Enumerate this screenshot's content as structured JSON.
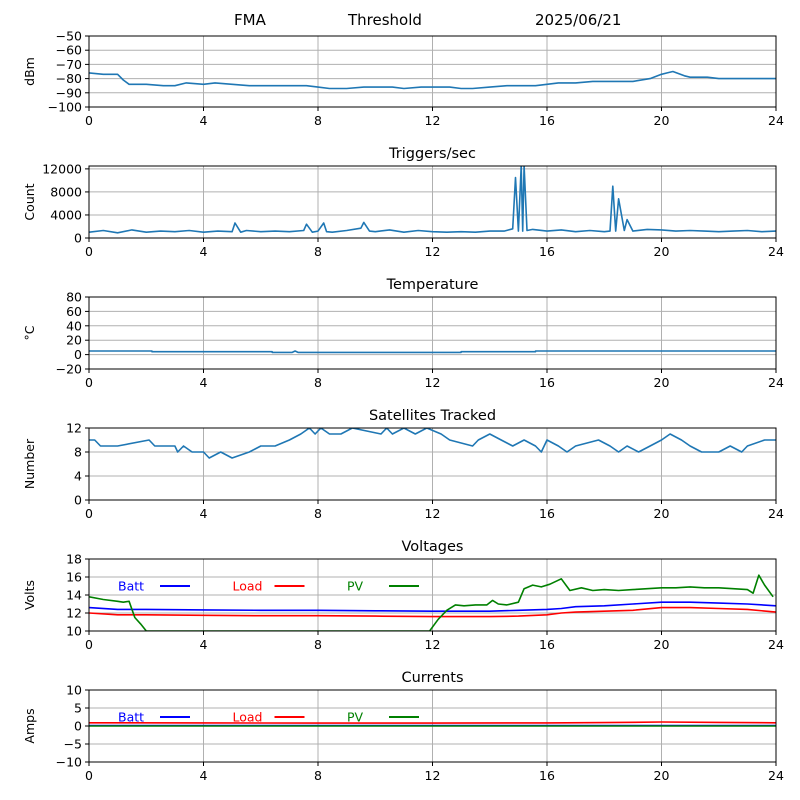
{
  "header": {
    "station": "FMA",
    "mode": "Threshold",
    "date": "2025/06/21"
  },
  "colors": {
    "series_default": "#1f77b4",
    "batt": "#0000ff",
    "load": "#ff0000",
    "pv": "#008000",
    "grid": "#b0b0b0"
  },
  "chart_data": [
    {
      "id": "signal",
      "type": "line",
      "title": "",
      "xlabel": "",
      "ylabel": "dBm",
      "xlim": [
        0,
        24
      ],
      "ylim": [
        -100,
        -50
      ],
      "xticks": [
        0,
        4,
        8,
        12,
        16,
        20,
        24
      ],
      "yticks": [
        -100,
        -90,
        -80,
        -70,
        -60,
        -50
      ],
      "grid": true,
      "series": [
        {
          "color": "#1f77b4",
          "x": [
            0,
            0.5,
            1,
            1.2,
            1.4,
            2,
            2.6,
            3,
            3.4,
            4,
            4.4,
            5,
            5.6,
            6,
            6.4,
            7,
            7.6,
            8,
            8.4,
            9,
            9.6,
            10,
            10.6,
            11,
            11.6,
            12,
            12.6,
            13,
            13.4,
            14,
            14.6,
            15,
            15.6,
            16,
            16.4,
            17,
            17.6,
            18,
            18.4,
            19,
            19.6,
            20,
            20.2,
            20.4,
            20.8,
            21,
            21.6,
            22,
            22.6,
            23,
            23.6,
            24
          ],
          "y": [
            -76,
            -77,
            -77,
            -81,
            -84,
            -84,
            -85,
            -85,
            -83,
            -84,
            -83,
            -84,
            -85,
            -85,
            -85,
            -85,
            -85,
            -86,
            -87,
            -87,
            -86,
            -86,
            -86,
            -87,
            -86,
            -86,
            -86,
            -87,
            -87,
            -86,
            -85,
            -85,
            -85,
            -84,
            -83,
            -83,
            -82,
            -82,
            -82,
            -82,
            -80,
            -77,
            -76,
            -75,
            -78,
            -79,
            -79,
            -80,
            -80,
            -80,
            -80,
            -80
          ]
        }
      ]
    },
    {
      "id": "triggers",
      "type": "line",
      "title": "Triggers/sec",
      "xlabel": "",
      "ylabel": "Count",
      "xlim": [
        0,
        24
      ],
      "ylim": [
        0,
        12500
      ],
      "xticks": [
        0,
        4,
        8,
        12,
        16,
        20,
        24
      ],
      "yticks": [
        0,
        4000,
        8000,
        12000
      ],
      "grid": true,
      "series": [
        {
          "color": "#1f77b4",
          "x": [
            0,
            0.5,
            1,
            1.5,
            2,
            2.5,
            3,
            3.5,
            4,
            4.5,
            5,
            5.1,
            5.3,
            5.5,
            6,
            6.5,
            7,
            7.5,
            7.6,
            7.8,
            8,
            8.2,
            8.3,
            8.5,
            9,
            9.5,
            9.6,
            9.8,
            10,
            10.5,
            11,
            11.5,
            12,
            12.5,
            13,
            13.5,
            14,
            14.5,
            14.8,
            14.9,
            15.0,
            15.1,
            15.15,
            15.2,
            15.3,
            15.5,
            16,
            16.5,
            17,
            17.5,
            18,
            18.2,
            18.3,
            18.4,
            18.5,
            18.7,
            18.8,
            19,
            19.5,
            20,
            20.5,
            21,
            21.5,
            22,
            22.5,
            23,
            23.5,
            24
          ],
          "y": [
            1000,
            1300,
            900,
            1400,
            1000,
            1200,
            1100,
            1300,
            1000,
            1200,
            1100,
            2600,
            1000,
            1300,
            1100,
            1200,
            1100,
            1300,
            2400,
            1000,
            1200,
            2600,
            1100,
            1000,
            1300,
            1700,
            2700,
            1200,
            1100,
            1400,
            1000,
            1300,
            1100,
            1000,
            1100,
            1000,
            1200,
            1200,
            1600,
            10500,
            1200,
            12500,
            1200,
            12500,
            1300,
            1500,
            1200,
            1400,
            1100,
            1300,
            1100,
            1200,
            9000,
            1200,
            6800,
            1300,
            3200,
            1200,
            1500,
            1400,
            1200,
            1300,
            1200,
            1100,
            1200,
            1300,
            1100,
            1200
          ]
        }
      ]
    },
    {
      "id": "temperature",
      "type": "line",
      "title": "Temperature",
      "xlabel": "",
      "ylabel": "°C",
      "xlim": [
        0,
        24
      ],
      "ylim": [
        -20,
        80
      ],
      "xticks": [
        0,
        4,
        8,
        12,
        16,
        20,
        24
      ],
      "yticks": [
        -20,
        0,
        20,
        40,
        60,
        80
      ],
      "grid": true,
      "series": [
        {
          "color": "#1f77b4",
          "x": [
            0,
            2.2,
            2.2,
            6.4,
            6.4,
            7.1,
            7.2,
            7.3,
            13,
            13,
            15.6,
            15.6,
            24
          ],
          "y": [
            5,
            5,
            4,
            4,
            3,
            3,
            5,
            3,
            3,
            4,
            4,
            5,
            5
          ]
        }
      ]
    },
    {
      "id": "satellites",
      "type": "line",
      "title": "Satellites Tracked",
      "xlabel": "",
      "ylabel": "Number",
      "xlim": [
        0,
        24
      ],
      "ylim": [
        0,
        12
      ],
      "xticks": [
        0,
        4,
        8,
        12,
        16,
        20,
        24
      ],
      "yticks": [
        0,
        4,
        8,
        12
      ],
      "grid": true,
      "series": [
        {
          "color": "#1f77b4",
          "x": [
            0,
            0.2,
            0.4,
            1,
            2.1,
            2.3,
            3,
            3.1,
            3.3,
            3.6,
            4,
            4.2,
            4.6,
            5,
            5.6,
            6,
            6.5,
            7,
            7.4,
            7.7,
            7.9,
            8.1,
            8.4,
            8.8,
            9.2,
            10.2,
            10.4,
            10.6,
            11,
            11.4,
            11.8,
            12.3,
            12.6,
            13.4,
            13.6,
            14,
            14.4,
            14.8,
            15.2,
            15.6,
            15.8,
            16,
            16.4,
            16.7,
            17,
            17.8,
            18.2,
            18.5,
            18.8,
            19.2,
            19.6,
            20,
            20.3,
            20.7,
            21,
            21.4,
            22,
            22.4,
            22.8,
            23,
            23.6,
            24
          ],
          "y": [
            10,
            10,
            9,
            9,
            10,
            9,
            9,
            8,
            9,
            8,
            8,
            7,
            8,
            7,
            8,
            9,
            9,
            10,
            11,
            12,
            11,
            12,
            11,
            11,
            12,
            11,
            12,
            11,
            12,
            11,
            12,
            11,
            10,
            9,
            10,
            11,
            10,
            9,
            10,
            9,
            8,
            10,
            9,
            8,
            9,
            10,
            9,
            8,
            9,
            8,
            9,
            10,
            11,
            10,
            9,
            8,
            8,
            9,
            8,
            9,
            10,
            10
          ]
        }
      ]
    },
    {
      "id": "voltages",
      "type": "line",
      "title": "Voltages",
      "xlabel": "",
      "ylabel": "Volts",
      "xlim": [
        0,
        24
      ],
      "ylim": [
        10,
        18
      ],
      "xticks": [
        0,
        4,
        8,
        12,
        16,
        20,
        24
      ],
      "yticks": [
        10,
        12,
        14,
        16,
        18
      ],
      "grid": true,
      "legend_position": "top-left",
      "series": [
        {
          "name": "Batt",
          "color": "#0000ff",
          "x": [
            0,
            1,
            2,
            4,
            6,
            8,
            10,
            12,
            14,
            15,
            16,
            16.5,
            17,
            18,
            19,
            20,
            21,
            22,
            23,
            24
          ],
          "y": [
            12.6,
            12.4,
            12.4,
            12.35,
            12.3,
            12.3,
            12.25,
            12.2,
            12.2,
            12.3,
            12.4,
            12.5,
            12.7,
            12.8,
            13.0,
            13.2,
            13.2,
            13.1,
            13.0,
            12.8
          ]
        },
        {
          "name": "Load",
          "color": "#ff0000",
          "x": [
            0,
            1,
            2,
            4,
            6,
            8,
            10,
            12,
            14,
            15,
            16,
            16.5,
            17,
            18,
            19,
            20,
            21,
            22,
            23,
            24
          ],
          "y": [
            12.0,
            11.8,
            11.8,
            11.75,
            11.7,
            11.7,
            11.65,
            11.6,
            11.6,
            11.65,
            11.8,
            12.0,
            12.1,
            12.2,
            12.3,
            12.6,
            12.6,
            12.5,
            12.4,
            12.1
          ]
        },
        {
          "name": "PV",
          "color": "#008000",
          "x": [
            0,
            0.5,
            1,
            1.2,
            1.4,
            1.6,
            1.8,
            2.0,
            11.9,
            12.2,
            12.5,
            12.8,
            13.1,
            13.5,
            13.9,
            14.1,
            14.3,
            14.6,
            15.0,
            15.2,
            15.5,
            15.8,
            16.1,
            16.5,
            16.8,
            17.2,
            17.6,
            18,
            18.5,
            19,
            19.5,
            20,
            20.5,
            21,
            21.5,
            22,
            22.5,
            23,
            23.2,
            23.4,
            23.6,
            23.9
          ],
          "y": [
            13.8,
            13.5,
            13.3,
            13.2,
            13.3,
            11.5,
            10.8,
            10.0,
            10.0,
            11.3,
            12.3,
            12.9,
            12.8,
            12.9,
            12.9,
            13.4,
            13.0,
            12.9,
            13.2,
            14.7,
            15.1,
            14.9,
            15.2,
            15.8,
            14.5,
            14.8,
            14.5,
            14.6,
            14.5,
            14.6,
            14.7,
            14.8,
            14.8,
            14.9,
            14.8,
            14.8,
            14.7,
            14.6,
            14.2,
            16.2,
            15.1,
            13.8
          ]
        }
      ]
    },
    {
      "id": "currents",
      "type": "line",
      "title": "Currents",
      "xlabel": "",
      "ylabel": "Amps",
      "xlim": [
        0,
        24
      ],
      "ylim": [
        -10,
        10
      ],
      "xticks": [
        0,
        4,
        8,
        12,
        16,
        20,
        24
      ],
      "yticks": [
        -10,
        -5,
        0,
        5,
        10
      ],
      "grid": true,
      "legend_position": "top-left",
      "series": [
        {
          "name": "Batt",
          "color": "#0000ff",
          "x": [
            0,
            24
          ],
          "y": [
            0.1,
            0.1
          ]
        },
        {
          "name": "Load",
          "color": "#ff0000",
          "x": [
            0,
            4,
            8,
            12,
            16,
            18,
            20,
            22,
            24
          ],
          "y": [
            0.9,
            0.85,
            0.8,
            0.8,
            0.85,
            0.95,
            1.1,
            1.0,
            0.9
          ]
        },
        {
          "name": "PV",
          "color": "#008000",
          "x": [
            0,
            24
          ],
          "y": [
            0.0,
            0.0
          ]
        }
      ]
    }
  ]
}
